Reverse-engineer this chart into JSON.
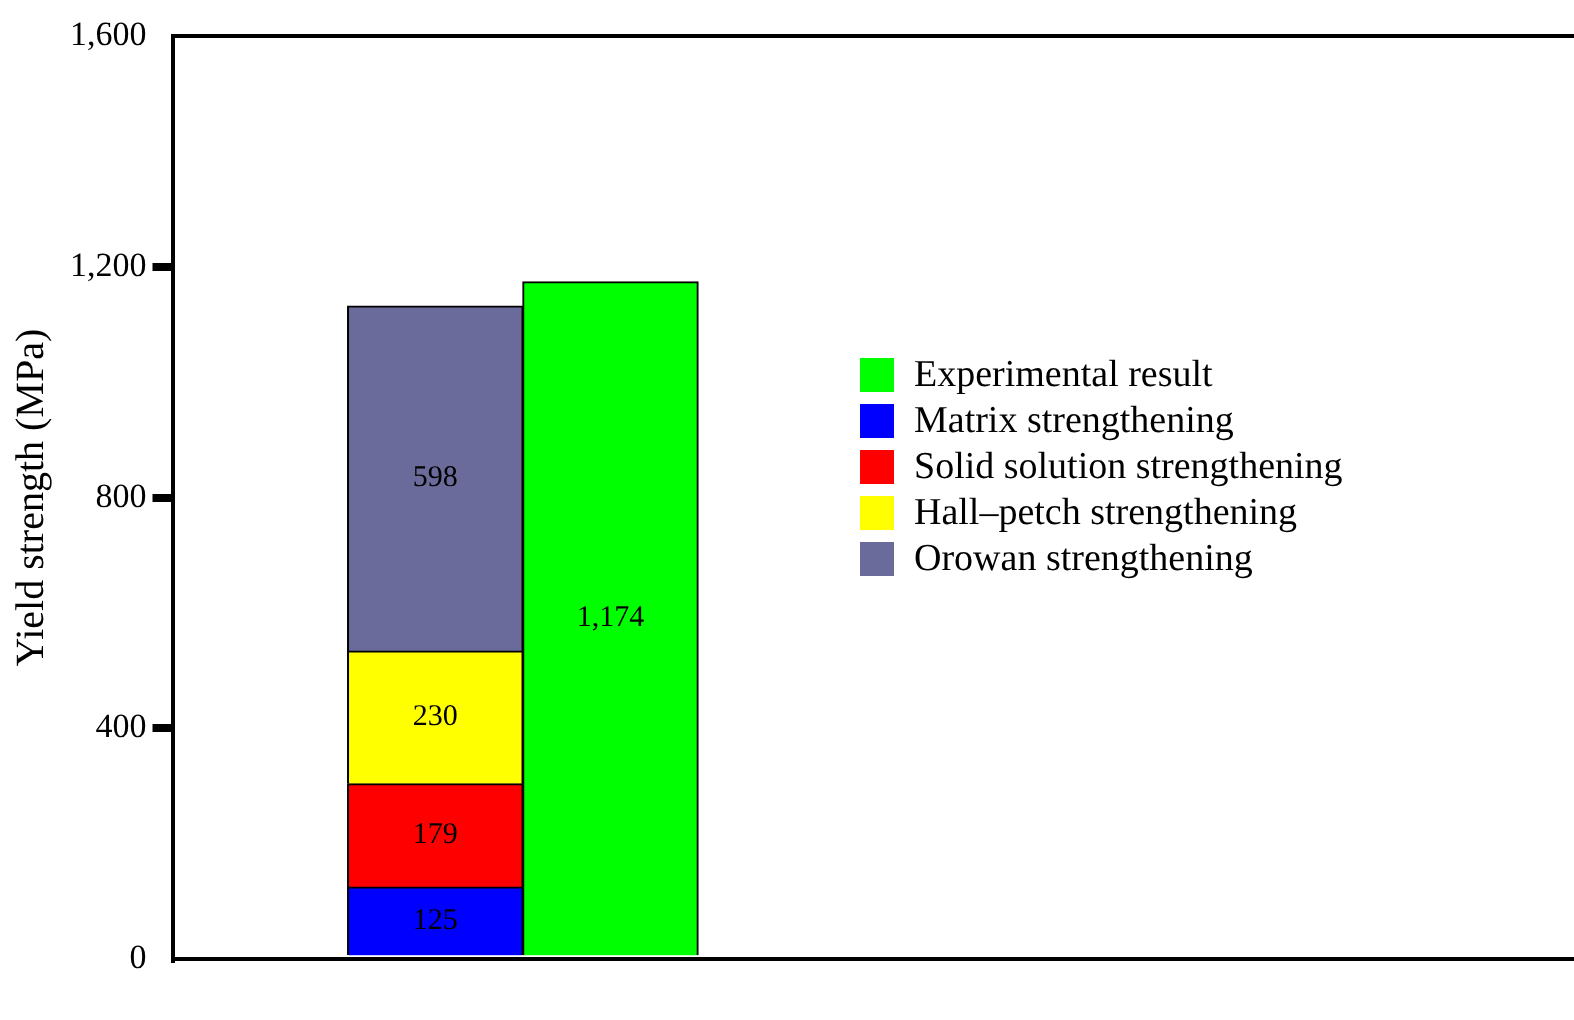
{
  "chart_data": {
    "type": "bar",
    "ylabel": "Yield strength (MPa)",
    "stacked": true,
    "data_labels": true,
    "legend": "right",
    "grid": false,
    "categories": [
      null,
      null,
      null,
      null,
      null,
      null,
      null,
      null
    ],
    "ylim": [
      0,
      1600
    ],
    "yticks": [
      0,
      400,
      800,
      {
        "value": 1200,
        "label": "1,200"
      },
      {
        "value": 1600,
        "label": "1,600"
      }
    ],
    "series": [
      {
        "name": "Experimental result",
        "color": "#00ff00",
        "values": [
          null,
          null,
          1174,
          null,
          null,
          null,
          null,
          null
        ],
        "value_labels": [
          null,
          null,
          "1,174",
          null,
          null,
          null,
          null,
          null
        ]
      },
      {
        "name": "Matrix strengthening",
        "color": "#0000ff",
        "values": [
          null,
          125,
          null,
          null,
          null,
          null,
          null,
          null
        ]
      },
      {
        "name": "Solid solution strengthening",
        "color": "#ff0000",
        "values": [
          null,
          179,
          null,
          null,
          null,
          null,
          null,
          null
        ]
      },
      {
        "name": "Hall–petch strengthening",
        "color": "#ffff00",
        "values": [
          null,
          230,
          null,
          null,
          null,
          null,
          null,
          null
        ]
      },
      {
        "name": "Orowan strengthening",
        "color": "#6b6b9b",
        "values": [
          null,
          598,
          null,
          null,
          null,
          null,
          null,
          null
        ]
      }
    ]
  }
}
